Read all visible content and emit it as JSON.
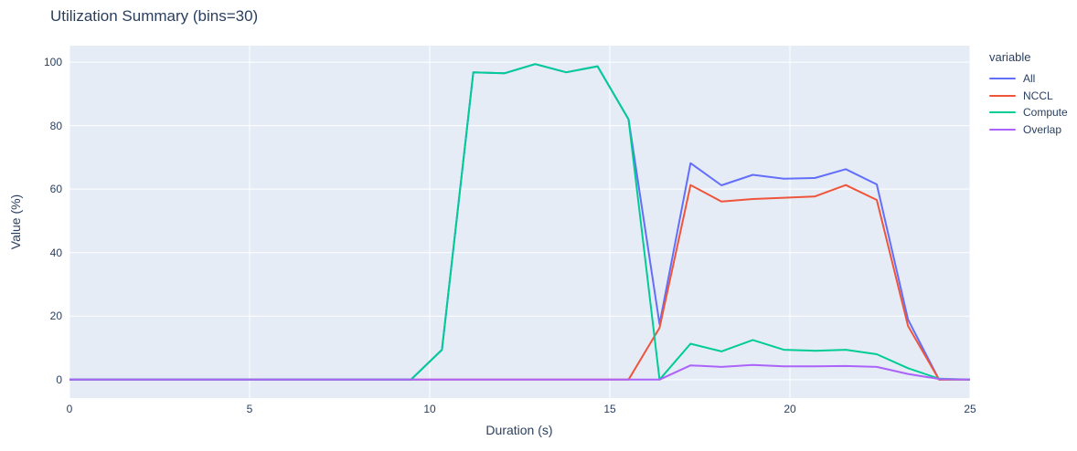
{
  "title": "Utilization Summary (bins=30)",
  "colors": {
    "paper_bg": "#ffffff",
    "plot_bg": "#e5ecf6",
    "grid": "#ffffff",
    "text": "#2a3f5f",
    "series_all": "#636efa",
    "series_nccl": "#ef553b",
    "series_compute": "#00cc96",
    "series_overlap": "#ab63fa"
  },
  "chart_data": {
    "type": "line",
    "title": "Utilization Summary (bins=30)",
    "xlabel": "Duration (s)",
    "ylabel": "Value (%)",
    "legend_title": "variable",
    "legend_position": "right",
    "grid": true,
    "xlim": [
      0,
      25
    ],
    "ylim": [
      -5.8,
      105.2
    ],
    "x_ticks": [
      0,
      5,
      10,
      15,
      20,
      25
    ],
    "y_ticks": [
      0,
      20,
      40,
      60,
      80,
      100
    ],
    "x": [
      0,
      0.86,
      1.72,
      2.59,
      3.45,
      4.31,
      5.17,
      6.03,
      6.9,
      7.76,
      8.62,
      9.48,
      10.34,
      11.21,
      12.07,
      12.93,
      13.79,
      14.66,
      15.52,
      16.38,
      17.24,
      18.1,
      18.97,
      19.83,
      20.69,
      21.55,
      22.41,
      23.28,
      24.14,
      25
    ],
    "series": [
      {
        "name": "All",
        "color": "#636efa",
        "values": [
          0,
          0,
          0,
          0,
          0,
          0,
          0,
          0,
          0,
          0,
          0,
          0,
          9.4,
          96.8,
          96.5,
          99.4,
          96.8,
          98.7,
          82,
          17.5,
          68.2,
          61.2,
          64.5,
          63.3,
          63.5,
          66.3,
          61.5,
          18.9,
          0,
          0
        ]
      },
      {
        "name": "NCCL",
        "color": "#ef553b",
        "values": [
          0,
          0,
          0,
          0,
          0,
          0,
          0,
          0,
          0,
          0,
          0,
          0,
          0,
          0,
          0,
          0,
          0,
          0,
          0,
          16.3,
          61.3,
          56.1,
          56.9,
          57.3,
          57.7,
          61.3,
          56.6,
          16.9,
          0,
          0
        ]
      },
      {
        "name": "Compute",
        "color": "#00cc96",
        "values": [
          0,
          0,
          0,
          0,
          0,
          0,
          0,
          0,
          0,
          0,
          0,
          0,
          9.4,
          96.8,
          96.5,
          99.4,
          96.8,
          98.7,
          82,
          0,
          11.3,
          8.9,
          12.5,
          9.4,
          9.1,
          9.4,
          8,
          3.6,
          0.3,
          0
        ]
      },
      {
        "name": "Overlap",
        "color": "#ab63fa",
        "values": [
          0,
          0,
          0,
          0,
          0,
          0,
          0,
          0,
          0,
          0,
          0,
          0,
          0,
          0,
          0,
          0,
          0,
          0,
          0,
          0,
          4.5,
          4,
          4.6,
          4.2,
          4.2,
          4.3,
          4,
          1.8,
          0.2,
          0
        ]
      }
    ]
  }
}
